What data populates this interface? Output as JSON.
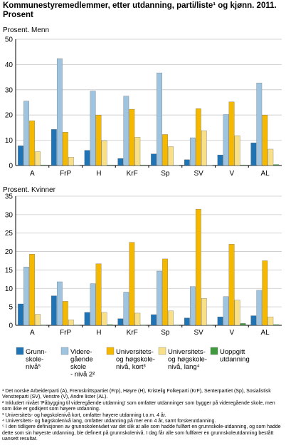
{
  "title": "Kommunestyremedlemmer, etter utdanning, parti/liste¹ og kjønn. 2011. Prosent",
  "colors": {
    "grunnskole": "#1f74b6",
    "videregaende": "#9ec4e0",
    "univ_kort": "#f5b800",
    "univ_lang": "#f8e088",
    "uoppgitt": "#3f9a3f",
    "grid": "#c8c8c8",
    "axis": "#000000"
  },
  "chart_data": [
    {
      "type": "bar",
      "title": "Prosent. Menn",
      "categories": [
        "A",
        "FrP",
        "H",
        "KrF",
        "Sp",
        "SV",
        "V",
        "AL"
      ],
      "ylim": [
        0,
        50
      ],
      "yticks": [
        "0",
        "10",
        "20",
        "30",
        "40",
        "50"
      ],
      "grid": true,
      "series": [
        {
          "name": "Grunnskole-nivå⁵",
          "key": "grunnskole",
          "values": [
            7.8,
            14.3,
            6.0,
            2.8,
            4.6,
            2.3,
            4.2,
            9.0
          ]
        },
        {
          "name": "Videregående skole-nivå 2²",
          "key": "videregaende",
          "values": [
            25.5,
            42.3,
            29.5,
            27.5,
            36.7,
            11.0,
            20.2,
            32.7
          ]
        },
        {
          "name": "Universitets- og høgskole-nivå, kort³",
          "key": "univ_kort",
          "values": [
            17.7,
            13.2,
            20.0,
            22.3,
            12.3,
            22.5,
            25.2,
            20.0
          ]
        },
        {
          "name": "Universitets- og høgskole-nivå, lang⁴",
          "key": "univ_lang",
          "values": [
            5.5,
            3.3,
            9.8,
            11.2,
            7.5,
            13.8,
            11.8,
            6.5
          ]
        },
        {
          "name": "Uoppgitt utdanning",
          "key": "uoppgitt",
          "values": [
            0.2,
            0.1,
            0.2,
            0.2,
            0.1,
            0.1,
            0.2,
            0.4
          ]
        }
      ]
    },
    {
      "type": "bar",
      "title": "Prosent. Kvinner",
      "categories": [
        "A",
        "FrP",
        "H",
        "KrF",
        "Sp",
        "SV",
        "V",
        "AL"
      ],
      "ylim": [
        0,
        35
      ],
      "yticks": [
        "0",
        "5",
        "10",
        "15",
        "20",
        "25",
        "30",
        "35"
      ],
      "grid": true,
      "series": [
        {
          "name": "Grunnskole-nivå⁵",
          "key": "grunnskole",
          "values": [
            5.8,
            8.0,
            3.5,
            1.8,
            2.9,
            2.0,
            2.3,
            2.6
          ]
        },
        {
          "name": "Videregående skole-nivå 2²",
          "key": "videregaende",
          "values": [
            15.8,
            11.8,
            11.3,
            9.0,
            14.7,
            10.5,
            7.8,
            9.5
          ]
        },
        {
          "name": "Universitets- og høgskole-nivå, kort³",
          "key": "univ_kort",
          "values": [
            19.3,
            6.5,
            16.7,
            22.5,
            18.0,
            31.5,
            22.0,
            17.5
          ]
        },
        {
          "name": "Universitets- og høgskole-nivå, lang⁴",
          "key": "univ_lang",
          "values": [
            3.0,
            1.5,
            3.5,
            3.3,
            3.9,
            7.3,
            6.8,
            2.3
          ]
        },
        {
          "name": "Uoppgitt utdanning",
          "key": "uoppgitt",
          "values": [
            0.1,
            0.1,
            0.2,
            0.1,
            0.1,
            0.1,
            0.5,
            0.2
          ]
        }
      ]
    }
  ],
  "legend": [
    {
      "key": "grunnskole",
      "lines": [
        "Grunn-",
        "skole-",
        "nivå⁵"
      ]
    },
    {
      "key": "videregaende",
      "lines": [
        "Videre-",
        "gående",
        "skole",
        "- nivå 2²"
      ]
    },
    {
      "key": "univ_kort",
      "lines": [
        "Universitets-",
        "og høgskole-",
        "nivå, kort³"
      ]
    },
    {
      "key": "univ_lang",
      "lines": [
        "Universitets-",
        "og høgskole-",
        "nivå, lang⁴"
      ]
    },
    {
      "key": "uoppgitt",
      "lines": [
        "Uoppgitt",
        "utdanning"
      ]
    }
  ],
  "footnotes": [
    "¹ Det norske Arbeiderparti (A), Fremskrittspartiet (Frp), Høyre (H), Kristelig Folkeparti (KrF), Senterpartiet (Sp), Sosialistisk Venstreparti (SV), Venstre (V), Andre lister (AL).",
    "² Inkludert nivået 'Påbygging til videregående utdanning' som omfatter utdanninger som bygger på videregående skole, men som ikke er godkjent som høyere utdanning.",
    "³ Universitets- og høgskolenivå kort, omfatter høyere utdanning t.o.m. 4 år.",
    "⁴ Universitets- og høgskolenivå lang, omfatter utdanning på mer enn 4 år, samt forskerutdanning.",
    "⁵ I den tidligere definisjonen av grunnskolenivået var det slik at alle som hadde fullført en grunnskole-utdanning, og som hadde dette som sin høyeste utdanning, ble definert på grunnskolenivå. I dag får alle som fullfører en grunnskoleutdanning bestått uansett resultat."
  ]
}
